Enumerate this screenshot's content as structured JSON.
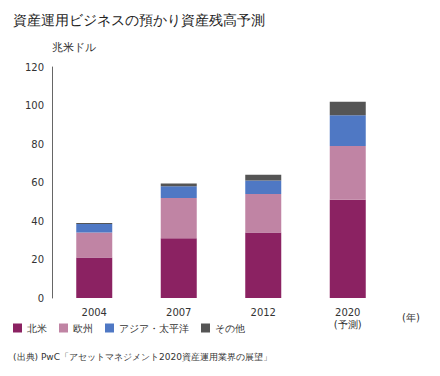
{
  "chart_data": {
    "type": "bar",
    "title": "資産運用ビジネスの預かり資産残高予測",
    "y_label": "兆米ドル",
    "x_label": "(年)",
    "source": "(出典) PwC「アセットマネジメント2020資産運用業界の展望」",
    "categories": [
      "2004",
      "2007",
      "2012",
      "2020\n(予測)"
    ],
    "series": [
      {
        "name": "北米",
        "color": "#8b2262",
        "values": [
          21,
          31,
          34,
          51
        ]
      },
      {
        "name": "欧州",
        "color": "#c084a4",
        "values": [
          13,
          21,
          20,
          28
        ]
      },
      {
        "name": "アジア・太平洋",
        "color": "#4f78c4",
        "values": [
          4.5,
          6,
          7,
          16
        ]
      },
      {
        "name": "その他",
        "color": "#555555",
        "values": [
          0.5,
          1.5,
          3,
          7
        ]
      }
    ],
    "ylim": [
      0,
      120
    ],
    "yticks": [
      0,
      20,
      40,
      60,
      80,
      100,
      120
    ],
    "stacked": true,
    "grid": false,
    "legend": "bottom",
    "data_labels": false
  }
}
